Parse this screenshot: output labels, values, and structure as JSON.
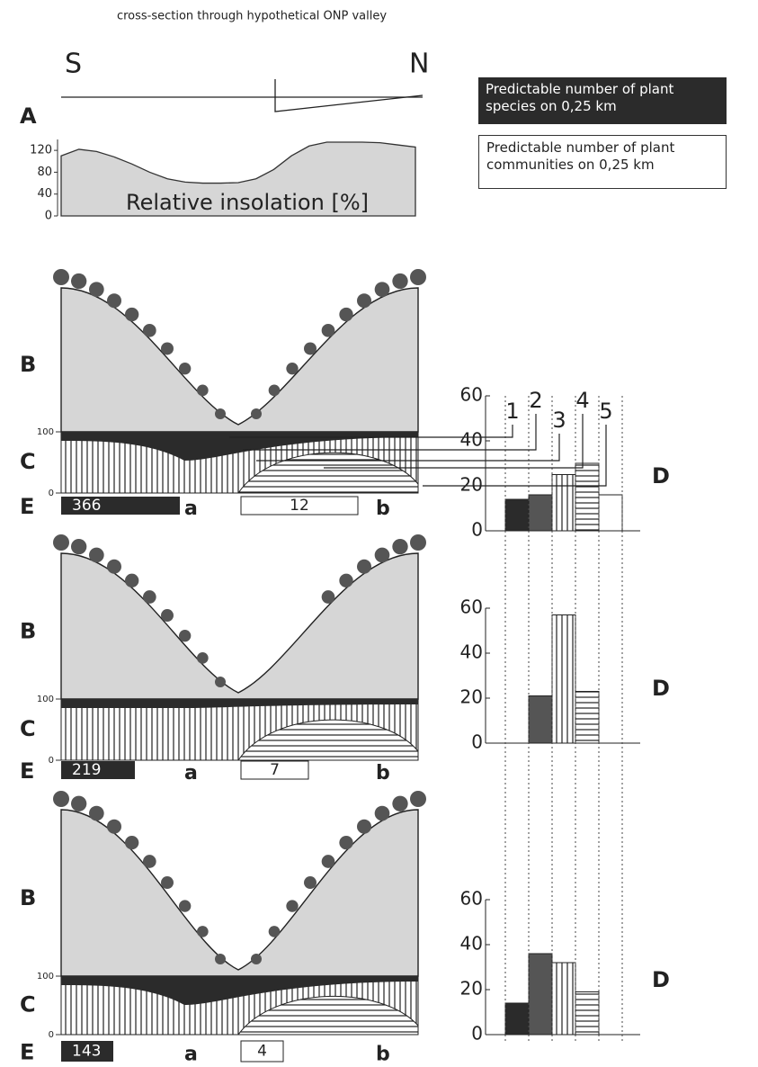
{
  "header": {
    "title": "cross-section through hypothetical ONP valley",
    "left": "S",
    "right": "N"
  },
  "panel_a": {
    "label": "A",
    "caption": "Relative insolation [%]",
    "ylim": [
      0,
      140
    ],
    "yticks": [
      0,
      40,
      80,
      120
    ],
    "values": [
      110,
      122,
      118,
      108,
      95,
      80,
      68,
      62,
      60,
      60,
      61,
      68,
      85,
      110,
      128,
      135,
      135,
      135,
      134,
      130,
      126
    ]
  },
  "legend": {
    "species": "Predictable number of plant species on 0,25 km",
    "communities": "Predictable number of plant communities on 0,25 km"
  },
  "row_labels": {
    "b": "B",
    "c": "C",
    "e": "E",
    "d": "D",
    "a_side": "a",
    "b_side": "b"
  },
  "c_axis": {
    "ylim": [
      0,
      100
    ],
    "yticks": [
      0,
      100
    ]
  },
  "d_columns": [
    "1",
    "2",
    "3",
    "4",
    "5"
  ],
  "rows": [
    {
      "species": 366,
      "communities": 12,
      "d_chart": {
        "ylim": [
          0,
          60
        ],
        "yticks": [
          0,
          20,
          40,
          60
        ],
        "values": [
          14,
          16,
          25,
          30,
          16
        ]
      }
    },
    {
      "species": 219,
      "communities": 7,
      "d_chart": {
        "ylim": [
          0,
          60
        ],
        "yticks": [
          0,
          20,
          40,
          60
        ],
        "values": [
          null,
          21,
          57,
          23,
          null
        ]
      }
    },
    {
      "species": 143,
      "communities": 4,
      "d_chart": {
        "ylim": [
          0,
          60
        ],
        "yticks": [
          0,
          20,
          40,
          60
        ],
        "values": [
          14,
          36,
          32,
          19,
          null
        ]
      }
    }
  ]
}
